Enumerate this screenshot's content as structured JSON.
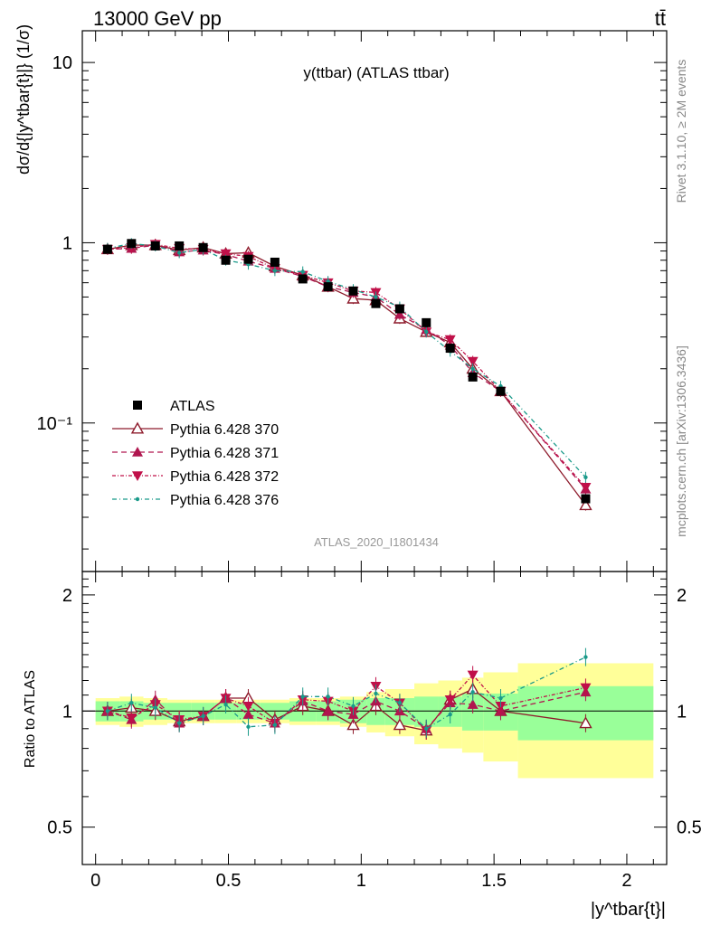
{
  "header": {
    "left": "13000 GeV pp",
    "right": "tt̄"
  },
  "side_labels": {
    "rivet": "Rivet 3.1.10, ≥ 2M events",
    "mcplots": "mcplots.cern.ch [arXiv:1306.3436]"
  },
  "chart_data": {
    "type": "scatter",
    "title": "y(ttbar) (ATLAS ttbar)",
    "analysis": "ATLAS_2020_I1801434",
    "ylabel": "dσ/d{|y^tbar{t}|} (1/σ)",
    "ratio_ylabel": "Ratio to ATLAS",
    "xlabel": "|y^tbar{t}|",
    "xlim": [
      -0.05,
      2.15
    ],
    "ylim": [
      0.015,
      15
    ],
    "ylog": true,
    "ratio_ylim": [
      0.4,
      2.3
    ],
    "x_ticks": [
      "0",
      "0.5",
      "1",
      "1.5",
      "2"
    ],
    "y_ticks": [
      "10",
      "1",
      "10⁻¹"
    ],
    "ratio_ticks": [
      "2",
      "1",
      "0.5"
    ],
    "legend_position": "bottom-left",
    "x": [
      0.045,
      0.135,
      0.225,
      0.315,
      0.405,
      0.49,
      0.575,
      0.675,
      0.78,
      0.875,
      0.97,
      1.055,
      1.145,
      1.245,
      1.335,
      1.42,
      1.525,
      1.845
    ],
    "bin_edges": [
      0,
      0.09,
      0.18,
      0.27,
      0.36,
      0.45,
      0.53,
      0.62,
      0.73,
      0.83,
      0.92,
      1.02,
      1.09,
      1.2,
      1.29,
      1.38,
      1.46,
      1.59,
      2.1
    ],
    "data": {
      "name": "ATLAS",
      "values": [
        0.92,
        0.99,
        0.96,
        0.96,
        0.94,
        0.8,
        0.81,
        0.78,
        0.63,
        0.57,
        0.54,
        0.46,
        0.43,
        0.36,
        0.26,
        0.18,
        0.15,
        0.038
      ],
      "band_inner": [
        0.06,
        0.06,
        0.05,
        0.05,
        0.05,
        0.05,
        0.05,
        0.05,
        0.06,
        0.06,
        0.07,
        0.08,
        0.08,
        0.09,
        0.09,
        0.11,
        0.11,
        0.16
      ],
      "band_outer": [
        0.08,
        0.09,
        0.08,
        0.07,
        0.07,
        0.07,
        0.07,
        0.07,
        0.08,
        0.08,
        0.09,
        0.12,
        0.14,
        0.18,
        0.2,
        0.22,
        0.26,
        0.33
      ]
    },
    "series": [
      {
        "name": "Pythia 6.428 370",
        "color": "#8e1b2c",
        "marker": "triangle-open",
        "dash": "",
        "values": [
          0.92,
          0.97,
          0.97,
          0.91,
          0.94,
          0.87,
          0.88,
          0.74,
          0.66,
          0.57,
          0.49,
          0.48,
          0.38,
          0.32,
          0.28,
          0.2,
          0.15,
          0.035
        ],
        "ratio": [
          1.0,
          1.02,
          1.0,
          0.94,
          0.97,
          1.08,
          1.08,
          0.95,
          1.03,
          1.0,
          0.92,
          1.03,
          0.92,
          0.89,
          1.07,
          1.14,
          1.0,
          0.93
        ]
      },
      {
        "name": "Pythia 6.428 371",
        "color": "#b0164f",
        "marker": "triangle-up",
        "dash": "6,4",
        "values": [
          0.92,
          0.93,
          0.97,
          0.89,
          0.91,
          0.86,
          0.79,
          0.72,
          0.65,
          0.57,
          0.53,
          0.5,
          0.4,
          0.33,
          0.27,
          0.19,
          0.15,
          0.043
        ],
        "ratio": [
          1.0,
          0.95,
          1.07,
          0.93,
          0.97,
          1.08,
          0.98,
          0.93,
          1.06,
          1.0,
          0.98,
          1.06,
          1.0,
          0.9,
          1.05,
          1.04,
          1.0,
          1.12
        ]
      },
      {
        "name": "Pythia 6.428 372",
        "color": "#c01049",
        "marker": "triangle-down",
        "dash": "4,2,1,2",
        "values": [
          0.92,
          0.94,
          0.98,
          0.93,
          0.92,
          0.87,
          0.84,
          0.72,
          0.66,
          0.6,
          0.54,
          0.53,
          0.43,
          0.32,
          0.29,
          0.22,
          0.15,
          0.044
        ],
        "ratio": [
          1.0,
          0.96,
          1.04,
          0.95,
          0.97,
          1.08,
          1.03,
          0.93,
          1.07,
          1.06,
          1.0,
          1.16,
          1.05,
          0.89,
          1.07,
          1.24,
          1.03,
          1.15
        ]
      },
      {
        "name": "Pythia 6.428 376",
        "color": "#1a9a8a",
        "marker": "dot",
        "dash": "5,3,1,3",
        "values": [
          0.93,
          0.99,
          0.96,
          0.88,
          0.92,
          0.8,
          0.76,
          0.7,
          0.69,
          0.61,
          0.55,
          0.5,
          0.44,
          0.32,
          0.25,
          0.2,
          0.16,
          0.05
        ],
        "ratio": [
          1.0,
          1.05,
          1.02,
          0.93,
          0.97,
          1.04,
          0.91,
          0.92,
          1.09,
          1.09,
          1.03,
          1.11,
          1.05,
          0.9,
          0.98,
          1.12,
          1.08,
          1.38
        ]
      }
    ]
  }
}
